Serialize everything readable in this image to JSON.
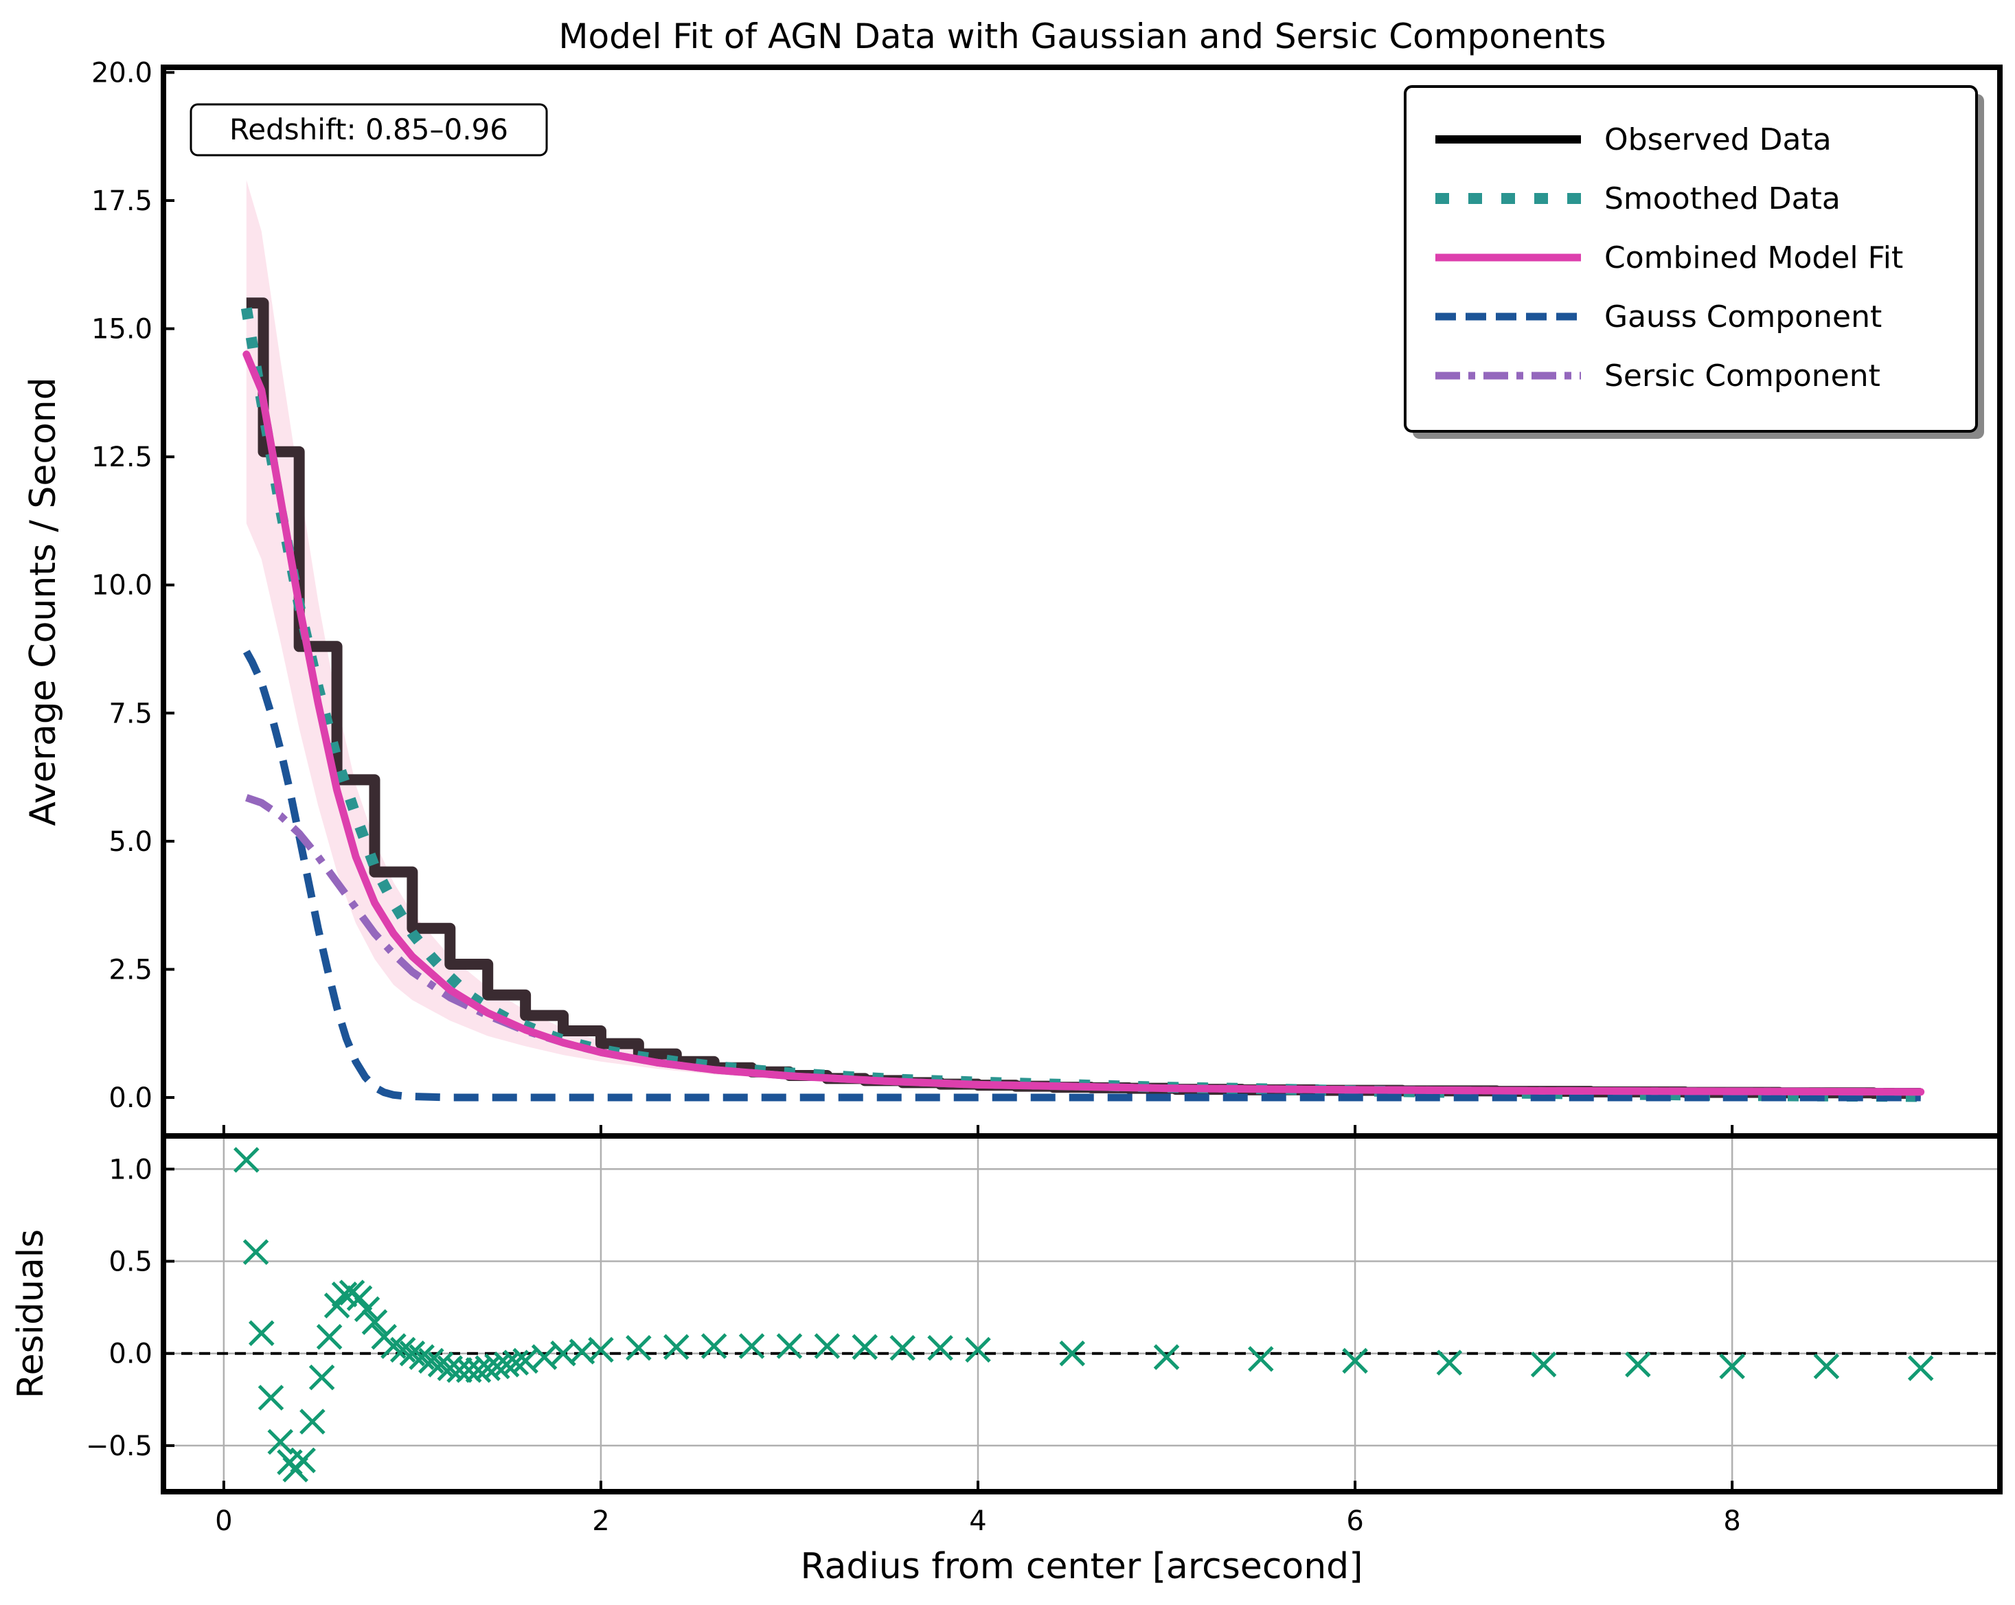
{
  "chart_data": [
    {
      "type": "line",
      "title": "Model Fit of AGN Data with Gaussian and Sersic Components",
      "xlabel": "",
      "ylabel": "Average Counts / Second",
      "xlim": [
        -0.32,
        9.42
      ],
      "ylim": [
        -0.75,
        20.1
      ],
      "yticks": [
        0.0,
        2.5,
        5.0,
        7.5,
        10.0,
        12.5,
        15.0,
        17.5,
        20.0
      ],
      "ytick_labels": [
        "0.0",
        "2.5",
        "5.0",
        "7.5",
        "10.0",
        "12.5",
        "15.0",
        "17.5",
        "20.0"
      ],
      "xticks": [
        0,
        2,
        4,
        6,
        8
      ],
      "grid": false,
      "legend_position": "top-right",
      "annotation": "Redshift: 0.85–0.96",
      "series": [
        {
          "name": "Observed Data",
          "style": "steps",
          "color": "#000000",
          "x": [
            0.12,
            0.3,
            0.5,
            0.7,
            0.9,
            1.1,
            1.3,
            1.5,
            1.7,
            1.9,
            2.1,
            2.3,
            2.5,
            2.7,
            2.9,
            3.1,
            3.3,
            3.5,
            3.7,
            3.9,
            4.1,
            4.3,
            4.5,
            4.7,
            4.9,
            5.2,
            5.6,
            6.0,
            6.5,
            7.0,
            7.5,
            8.0,
            8.5,
            9.0
          ],
          "y": [
            15.5,
            12.6,
            8.8,
            6.2,
            4.4,
            3.3,
            2.6,
            2.0,
            1.6,
            1.3,
            1.05,
            0.85,
            0.7,
            0.58,
            0.5,
            0.43,
            0.37,
            0.33,
            0.29,
            0.26,
            0.24,
            0.22,
            0.2,
            0.19,
            0.18,
            0.16,
            0.15,
            0.14,
            0.13,
            0.12,
            0.11,
            0.1,
            0.09,
            0.08
          ]
        },
        {
          "name": "Smoothed Data",
          "style": "dotted",
          "color": "#2a9590",
          "x": [
            0.12,
            0.2,
            0.3,
            0.4,
            0.5,
            0.6,
            0.7,
            0.8,
            0.9,
            1.0,
            1.1,
            1.2,
            1.3,
            1.4,
            1.5,
            1.6,
            1.7,
            1.8,
            1.9,
            2.0,
            2.2,
            2.4,
            2.6,
            2.8,
            3.0,
            3.3,
            3.6,
            4.0,
            4.5,
            5.0,
            5.5,
            6.0,
            6.5,
            7.0,
            7.5,
            8.0,
            8.5,
            9.0
          ],
          "y": [
            15.4,
            13.6,
            11.5,
            9.6,
            8.0,
            6.6,
            5.5,
            4.5,
            3.8,
            3.2,
            2.75,
            2.35,
            2.0,
            1.75,
            1.55,
            1.4,
            1.25,
            1.12,
            1.02,
            0.93,
            0.8,
            0.7,
            0.61,
            0.54,
            0.48,
            0.41,
            0.35,
            0.3,
            0.25,
            0.2,
            0.17,
            0.13,
            0.1,
            0.08,
            0.06,
            0.04,
            0.03,
            0.02
          ]
        },
        {
          "name": "Combined Model Fit",
          "style": "solid",
          "color": "#dd3fad",
          "band": true,
          "x": [
            0.12,
            0.2,
            0.3,
            0.4,
            0.5,
            0.6,
            0.7,
            0.8,
            0.9,
            1.0,
            1.2,
            1.4,
            1.6,
            1.8,
            2.0,
            2.3,
            2.6,
            3.0,
            3.5,
            4.0,
            5.0,
            6.0,
            7.0,
            8.0,
            9.0
          ],
          "y": [
            14.5,
            13.8,
            11.7,
            9.6,
            7.7,
            6.0,
            4.7,
            3.8,
            3.2,
            2.75,
            2.1,
            1.65,
            1.32,
            1.07,
            0.88,
            0.68,
            0.54,
            0.42,
            0.32,
            0.25,
            0.18,
            0.15,
            0.13,
            0.12,
            0.11
          ],
          "band_lower": [
            11.2,
            10.5,
            8.9,
            7.2,
            5.7,
            4.4,
            3.4,
            2.7,
            2.2,
            1.9,
            1.5,
            1.2,
            1.0,
            0.83,
            0.7,
            0.56,
            0.45,
            0.36,
            0.28,
            0.22,
            0.16,
            0.13,
            0.12,
            0.11,
            0.1
          ],
          "band_upper": [
            17.9,
            16.9,
            14.4,
            12.0,
            9.7,
            7.7,
            6.1,
            5.0,
            4.2,
            3.6,
            2.75,
            2.15,
            1.7,
            1.35,
            1.1,
            0.84,
            0.66,
            0.5,
            0.37,
            0.29,
            0.2,
            0.17,
            0.15,
            0.14,
            0.12
          ]
        },
        {
          "name": "Gauss Component",
          "style": "dashed",
          "color": "#1c5497",
          "x": [
            0.12,
            0.15,
            0.2,
            0.25,
            0.3,
            0.35,
            0.4,
            0.45,
            0.5,
            0.55,
            0.6,
            0.65,
            0.7,
            0.75,
            0.8,
            0.85,
            0.9,
            0.95,
            1.0,
            1.1,
            1.2,
            1.5,
            2.0,
            3.0,
            4.0,
            6.0,
            9.0
          ],
          "y": [
            8.7,
            8.5,
            8.1,
            7.5,
            6.8,
            6.0,
            5.1,
            4.2,
            3.3,
            2.5,
            1.75,
            1.15,
            0.7,
            0.4,
            0.2,
            0.1,
            0.05,
            0.03,
            0.02,
            0.01,
            0.0,
            0.0,
            0.0,
            0.0,
            0.0,
            0.0,
            0.0
          ]
        },
        {
          "name": "Sersic Component",
          "style": "dashdot",
          "color": "#9467bd",
          "x": [
            0.12,
            0.2,
            0.3,
            0.4,
            0.5,
            0.6,
            0.7,
            0.8,
            0.9,
            1.0,
            1.2,
            1.4,
            1.6,
            1.8,
            2.0,
            2.3,
            2.6,
            3.0,
            3.5,
            4.0,
            5.0,
            6.0,
            7.0,
            8.0,
            9.0
          ],
          "y": [
            5.85,
            5.75,
            5.5,
            5.15,
            4.7,
            4.2,
            3.7,
            3.2,
            2.8,
            2.45,
            1.95,
            1.6,
            1.3,
            1.07,
            0.88,
            0.68,
            0.54,
            0.42,
            0.32,
            0.25,
            0.18,
            0.15,
            0.13,
            0.12,
            0.11
          ]
        }
      ]
    },
    {
      "type": "scatter",
      "xlabel": "Radius from center [arcsecond]",
      "ylabel": "Residuals",
      "xlim": [
        -0.32,
        9.42
      ],
      "ylim": [
        -0.75,
        1.18
      ],
      "yticks": [
        -0.5,
        0.0,
        0.5,
        1.0
      ],
      "ytick_labels": [
        "−0.5",
        "0.0",
        "0.5",
        "1.0"
      ],
      "xticks": [
        0,
        2,
        4,
        6,
        8
      ],
      "xtick_labels": [
        "0",
        "2",
        "4",
        "6",
        "8"
      ],
      "grid": true,
      "zero_line": 0.0,
      "series": [
        {
          "marker": "x",
          "color": "#129a72",
          "x": [
            0.12,
            0.17,
            0.2,
            0.25,
            0.3,
            0.35,
            0.38,
            0.42,
            0.47,
            0.52,
            0.56,
            0.6,
            0.64,
            0.68,
            0.72,
            0.76,
            0.8,
            0.85,
            0.9,
            0.95,
            1.0,
            1.05,
            1.1,
            1.15,
            1.2,
            1.25,
            1.3,
            1.35,
            1.4,
            1.45,
            1.5,
            1.55,
            1.6,
            1.7,
            1.8,
            1.9,
            2.0,
            2.2,
            2.4,
            2.6,
            2.8,
            3.0,
            3.2,
            3.4,
            3.6,
            3.8,
            4.0,
            4.5,
            5.0,
            5.5,
            6.0,
            6.5,
            7.0,
            7.5,
            8.0,
            8.5,
            9.0
          ],
          "y": [
            1.05,
            0.55,
            0.11,
            -0.24,
            -0.48,
            -0.59,
            -0.63,
            -0.58,
            -0.37,
            -0.13,
            0.09,
            0.26,
            0.32,
            0.33,
            0.3,
            0.24,
            0.17,
            0.09,
            0.04,
            0.02,
            0.0,
            -0.02,
            -0.04,
            -0.06,
            -0.08,
            -0.09,
            -0.09,
            -0.09,
            -0.08,
            -0.07,
            -0.06,
            -0.05,
            -0.04,
            -0.02,
            0.0,
            0.01,
            0.02,
            0.03,
            0.035,
            0.04,
            0.04,
            0.04,
            0.04,
            0.035,
            0.03,
            0.03,
            0.02,
            0.0,
            -0.02,
            -0.03,
            -0.04,
            -0.05,
            -0.06,
            -0.06,
            -0.07,
            -0.07,
            -0.08
          ]
        }
      ]
    }
  ]
}
